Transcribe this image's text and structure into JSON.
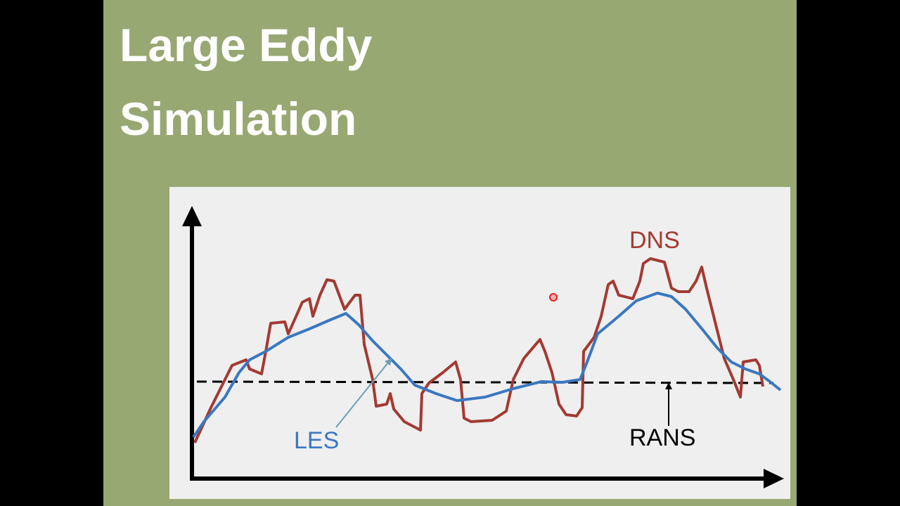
{
  "slide": {
    "title_lines": [
      "Large Eddy",
      "Simulation"
    ]
  },
  "diagram": {
    "labels": {
      "dns": "DNS",
      "les": "LES",
      "rans": "RANS"
    }
  }
}
